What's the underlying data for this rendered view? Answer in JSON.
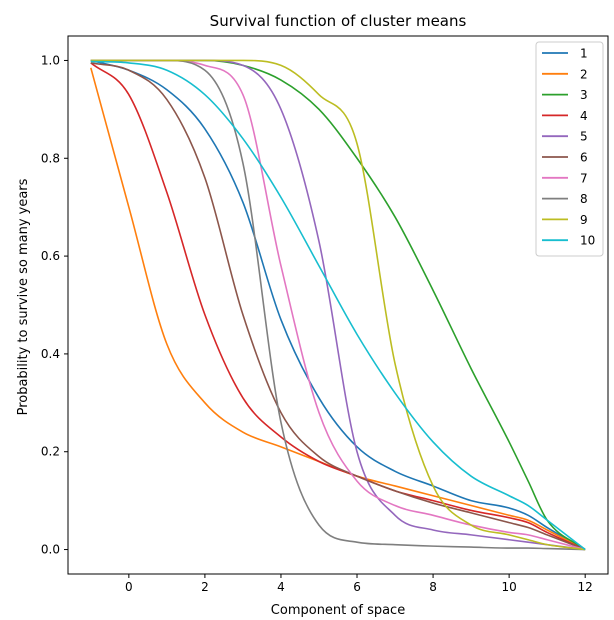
{
  "chart_data": {
    "type": "line",
    "title": "Survival function of cluster means",
    "xlabel": "Component of space",
    "ylabel": "Probability to survive so many years",
    "xlim": [
      -1.6,
      12.6
    ],
    "ylim": [
      -0.05,
      1.05
    ],
    "xticks": [
      0,
      2,
      4,
      6,
      8,
      10,
      12
    ],
    "yticks": [
      0.0,
      0.2,
      0.4,
      0.6,
      0.8,
      1.0
    ],
    "grid": false,
    "legend_position": "top-right",
    "x": [
      -1,
      0,
      1,
      2,
      3,
      4,
      5,
      6,
      7,
      8,
      9,
      10,
      10.5,
      11,
      12
    ],
    "series": [
      {
        "name": "1",
        "color": "#1f77b4",
        "values": [
          1.0,
          0.98,
          0.94,
          0.86,
          0.71,
          0.47,
          0.31,
          0.21,
          0.16,
          0.13,
          0.1,
          0.085,
          0.07,
          0.045,
          0.0
        ]
      },
      {
        "name": "2",
        "color": "#ff7f0e",
        "values": [
          0.985,
          0.7,
          0.42,
          0.3,
          0.24,
          0.21,
          0.18,
          0.15,
          0.13,
          0.11,
          0.09,
          0.07,
          0.06,
          0.04,
          0.0
        ]
      },
      {
        "name": "3",
        "color": "#2ca02c",
        "values": [
          1.0,
          1.0,
          1.0,
          1.0,
          0.99,
          0.96,
          0.9,
          0.8,
          0.68,
          0.53,
          0.37,
          0.22,
          0.14,
          0.06,
          0.0
        ]
      },
      {
        "name": "4",
        "color": "#d62728",
        "values": [
          0.995,
          0.93,
          0.73,
          0.48,
          0.31,
          0.23,
          0.18,
          0.15,
          0.12,
          0.1,
          0.08,
          0.065,
          0.055,
          0.035,
          0.0
        ]
      },
      {
        "name": "5",
        "color": "#9467bd",
        "values": [
          1.0,
          1.0,
          1.0,
          1.0,
          0.99,
          0.9,
          0.63,
          0.2,
          0.07,
          0.04,
          0.03,
          0.02,
          0.015,
          0.01,
          0.0
        ]
      },
      {
        "name": "6",
        "color": "#8c564b",
        "values": [
          0.995,
          0.98,
          0.92,
          0.76,
          0.48,
          0.28,
          0.19,
          0.15,
          0.12,
          0.095,
          0.075,
          0.055,
          0.045,
          0.03,
          0.0
        ]
      },
      {
        "name": "7",
        "color": "#e377c2",
        "values": [
          1.0,
          1.0,
          1.0,
          0.99,
          0.93,
          0.58,
          0.28,
          0.14,
          0.09,
          0.07,
          0.05,
          0.035,
          0.03,
          0.02,
          0.0
        ]
      },
      {
        "name": "8",
        "color": "#7f7f7f",
        "values": [
          1.0,
          1.0,
          1.0,
          0.98,
          0.79,
          0.26,
          0.05,
          0.015,
          0.01,
          0.007,
          0.005,
          0.003,
          0.003,
          0.002,
          0.0
        ]
      },
      {
        "name": "9",
        "color": "#bcbd22",
        "values": [
          1.0,
          1.0,
          1.0,
          1.0,
          1.0,
          0.99,
          0.93,
          0.83,
          0.38,
          0.13,
          0.05,
          0.03,
          0.02,
          0.01,
          0.0
        ]
      },
      {
        "name": "10",
        "color": "#17becf",
        "values": [
          0.998,
          0.995,
          0.98,
          0.93,
          0.84,
          0.72,
          0.58,
          0.44,
          0.32,
          0.22,
          0.15,
          0.11,
          0.09,
          0.06,
          0.0
        ]
      }
    ]
  }
}
